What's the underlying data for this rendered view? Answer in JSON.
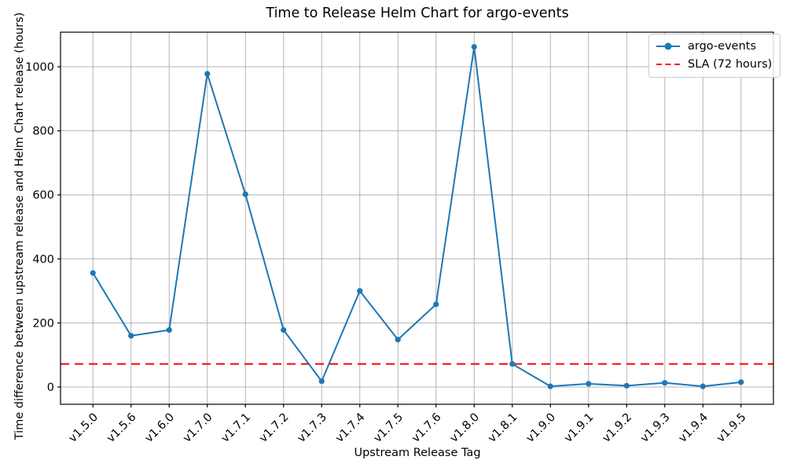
{
  "chart_data": {
    "type": "line",
    "title": "Time to Release Helm Chart for argo-events",
    "xlabel": "Upstream Release Tag",
    "ylabel": "Time difference between upstream release and Helm Chart release (hours)",
    "categories": [
      "v1.5.0",
      "v1.5.6",
      "v1.6.0",
      "v1.7.0",
      "v1.7.1",
      "v1.7.2",
      "v1.7.3",
      "v1.7.4",
      "v1.7.5",
      "v1.7.6",
      "v1.8.0",
      "v1.8.1",
      "v1.9.0",
      "v1.9.1",
      "v1.9.2",
      "v1.9.3",
      "v1.9.4",
      "v1.9.5"
    ],
    "series": [
      {
        "name": "argo-events",
        "color": "#1f77b4",
        "marker": "circle",
        "values": [
          356,
          160,
          178,
          978,
          602,
          178,
          18,
          300,
          148,
          258,
          1062,
          72,
          2,
          10,
          4,
          13,
          2,
          15
        ]
      }
    ],
    "sla_line": {
      "label": "SLA (72 hours)",
      "value": 72,
      "color": "#ff0000",
      "style": "dashed"
    },
    "yticks": [
      0,
      200,
      400,
      600,
      800,
      1000
    ],
    "ylim": [
      -54,
      1108
    ],
    "grid": true,
    "grid_color": "#b4b4b4",
    "axis_color": "#000000",
    "legend_position": "upper right"
  }
}
